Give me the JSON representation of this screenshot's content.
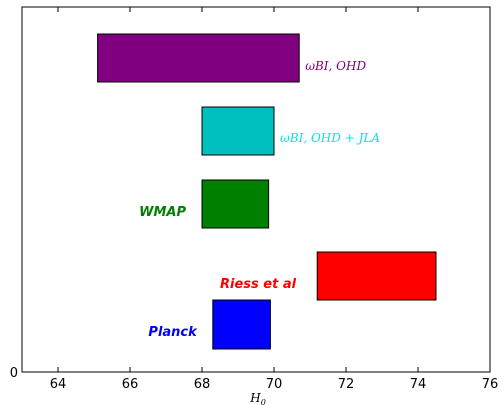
{
  "chart_data": {
    "type": "bar",
    "orientation": "horizontal-range",
    "xlabel": "H",
    "xlabel_subscript": "0",
    "xlim": [
      63,
      76
    ],
    "xticks": [
      "64",
      "66",
      "68",
      "70",
      "72",
      "74",
      "76"
    ],
    "ytick_zero": "0",
    "grid": false,
    "series": [
      {
        "name": "ωBI, OHD",
        "label": "ωBI, OHD",
        "x_start": 65.1,
        "x_end": 70.7,
        "level": 5,
        "fill": "#800080",
        "label_color": "#800080"
      },
      {
        "name": "ωBI, OHD + JLA",
        "label": "ωBI, OHD + JLA",
        "x_start": 68.0,
        "x_end": 70.0,
        "level": 4,
        "fill": "#00bfbf",
        "label_color": "#00e5e5"
      },
      {
        "name": "WMAP",
        "label": "WMAP",
        "x_start": 68.0,
        "x_end": 69.85,
        "level": 3,
        "fill": "#008000",
        "label_color": "#008000"
      },
      {
        "name": "Riess et al",
        "label": "Riess et al",
        "x_start": 71.2,
        "x_end": 74.5,
        "level": 2,
        "fill": "#ff0000",
        "label_color": "#ff0000"
      },
      {
        "name": "Planck",
        "label": "Planck",
        "x_start": 68.3,
        "x_end": 69.9,
        "level": 1,
        "fill": "#0000ff",
        "label_color": "#0000ff"
      }
    ]
  }
}
